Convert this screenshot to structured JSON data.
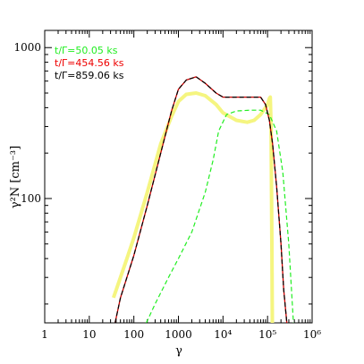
{
  "chart_data": {
    "type": "line",
    "title": "",
    "xlabel": "γ",
    "ylabel": "γ²N [cm⁻³]",
    "x_scale": "log",
    "y_scale": "log",
    "xlim": [
      1,
      1000000
    ],
    "ylim": [
      15,
      1300
    ],
    "grid": false,
    "legend_position": "top-left",
    "x_ticks": [
      {
        "value": 1,
        "label": "1"
      },
      {
        "value": 10,
        "label": "10"
      },
      {
        "value": 100,
        "label": "100"
      },
      {
        "value": 1000,
        "label": "1000"
      },
      {
        "value": 10000,
        "label": "10⁴"
      },
      {
        "value": 100000,
        "label": "10⁵"
      },
      {
        "value": 1000000,
        "label": "10⁶"
      }
    ],
    "y_ticks": [
      {
        "value": 100,
        "label": "100"
      },
      {
        "value": 1000,
        "label": "1000"
      }
    ],
    "legend": [
      {
        "label": "t/Γ=50.05 ks",
        "color": "#22ee22"
      },
      {
        "label": "t/Γ=454.56 ks",
        "color": "#ee0000"
      },
      {
        "label": "t/Γ=859.06 ks",
        "color": "#000000"
      }
    ],
    "series": [
      {
        "name": "t/Γ=50.05 ks",
        "color": "#22ee22",
        "style": "dashed",
        "x": [
          190,
          300,
          600,
          1000,
          2000,
          4000,
          6000,
          8000,
          12000,
          20000,
          40000,
          70000,
          110000,
          160000,
          220000,
          300000,
          380000
        ],
        "y": [
          15,
          20,
          30,
          40,
          60,
          110,
          180,
          280,
          360,
          380,
          385,
          385,
          360,
          280,
          150,
          50,
          15
        ]
      },
      {
        "name": "t/Γ=454.56 ks",
        "color": "#cc0000",
        "style": "solid",
        "x": [
          38,
          50,
          70,
          100,
          200,
          400,
          700,
          1000,
          1500,
          2500,
          4000,
          7000,
          10000,
          20000,
          40000,
          70000,
          90000,
          110000,
          130000,
          160000,
          200000,
          230000,
          270000
        ],
        "y": [
          15,
          22,
          30,
          42,
          90,
          200,
          380,
          530,
          610,
          640,
          580,
          500,
          470,
          470,
          470,
          470,
          420,
          330,
          230,
          120,
          50,
          25,
          15
        ]
      },
      {
        "name": "t/Γ=859.06 ks",
        "color": "#000000",
        "style": "dashed",
        "x": [
          38,
          50,
          70,
          100,
          200,
          400,
          700,
          1000,
          1500,
          2500,
          4000,
          7000,
          10000,
          20000,
          40000,
          70000,
          90000,
          110000,
          130000,
          160000,
          200000,
          230000,
          270000
        ],
        "y": [
          15,
          22,
          30,
          42,
          90,
          200,
          380,
          530,
          610,
          640,
          580,
          500,
          470,
          470,
          470,
          470,
          420,
          330,
          230,
          120,
          50,
          25,
          15
        ]
      },
      {
        "name": "",
        "color": "#f5f580",
        "style": "thick",
        "x": [
          35,
          50,
          70,
          100,
          200,
          400,
          700,
          1000,
          1500,
          2500,
          4000,
          7000,
          10000,
          20000,
          35000,
          50000,
          70000,
          85000,
          100000,
          105000,
          108000,
          110000,
          115000,
          120000,
          125000,
          128000,
          130000
        ],
        "y": [
          22,
          30,
          40,
          55,
          110,
          230,
          350,
          440,
          490,
          500,
          480,
          420,
          370,
          330,
          320,
          330,
          360,
          390,
          420,
          440,
          450,
          460,
          470,
          300,
          50,
          15,
          15
        ]
      }
    ]
  }
}
